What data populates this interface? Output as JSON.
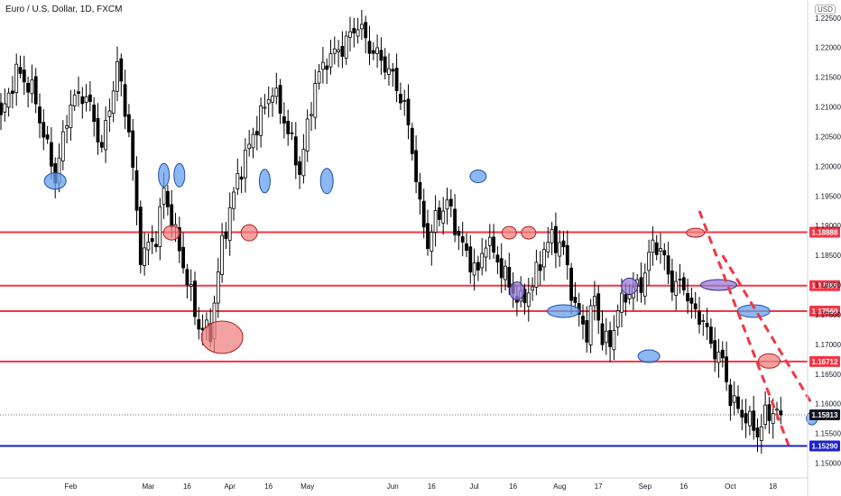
{
  "chart_data": {
    "type": "candlestick",
    "title": "Euro / U.S. Dollar, 1D, FXCM",
    "currency": "USD",
    "ylim": [
      1.1475,
      1.228
    ],
    "y_ticks": [
      "1.22500",
      "1.22000",
      "1.21500",
      "1.21000",
      "1.20500",
      "1.20000",
      "1.19500",
      "1.19000",
      "1.18500",
      "1.18000",
      "1.17500",
      "1.17000",
      "1.16500",
      "1.16000",
      "1.15500",
      "1.15000"
    ],
    "x_ticks": [
      {
        "label": "Feb",
        "i": 18
      },
      {
        "label": "Mar",
        "i": 38
      },
      {
        "label": "16",
        "i": 48
      },
      {
        "label": "Apr",
        "i": 59
      },
      {
        "label": "16",
        "i": 69
      },
      {
        "label": "May",
        "i": 79
      },
      {
        "label": "Jun",
        "i": 101
      },
      {
        "label": "16",
        "i": 111
      },
      {
        "label": "Jul",
        "i": 122
      },
      {
        "label": "16",
        "i": 132
      },
      {
        "label": "Aug",
        "i": 144
      },
      {
        "label": "17",
        "i": 154
      },
      {
        "label": "Sep",
        "i": 166
      },
      {
        "label": "16",
        "i": 176
      },
      {
        "label": "Oct",
        "i": 188
      },
      {
        "label": "18",
        "i": 199
      }
    ],
    "anchors": [
      {
        "i": 0,
        "v": 1.208
      },
      {
        "i": 4,
        "v": 1.216
      },
      {
        "i": 8,
        "v": 1.213
      },
      {
        "i": 14,
        "v": 1.198
      },
      {
        "i": 18,
        "v": 1.211
      },
      {
        "i": 22,
        "v": 1.212
      },
      {
        "i": 26,
        "v": 1.203
      },
      {
        "i": 30,
        "v": 1.217
      },
      {
        "i": 33,
        "v": 1.206
      },
      {
        "i": 36,
        "v": 1.185
      },
      {
        "i": 40,
        "v": 1.188
      },
      {
        "i": 42,
        "v": 1.196
      },
      {
        "i": 46,
        "v": 1.186
      },
      {
        "i": 51,
        "v": 1.173
      },
      {
        "i": 54,
        "v": 1.172
      },
      {
        "i": 57,
        "v": 1.187
      },
      {
        "i": 61,
        "v": 1.198
      },
      {
        "i": 66,
        "v": 1.207
      },
      {
        "i": 70,
        "v": 1.213
      },
      {
        "i": 74,
        "v": 1.206
      },
      {
        "i": 77,
        "v": 1.199
      },
      {
        "i": 81,
        "v": 1.214
      },
      {
        "i": 84,
        "v": 1.218
      },
      {
        "i": 88,
        "v": 1.22
      },
      {
        "i": 92,
        "v": 1.224
      },
      {
        "i": 95,
        "v": 1.22
      },
      {
        "i": 98,
        "v": 1.218
      },
      {
        "i": 101,
        "v": 1.215
      },
      {
        "i": 104,
        "v": 1.21
      },
      {
        "i": 106,
        "v": 1.203
      },
      {
        "i": 108,
        "v": 1.193
      },
      {
        "i": 110,
        "v": 1.187
      },
      {
        "i": 112,
        "v": 1.191
      },
      {
        "i": 115,
        "v": 1.194
      },
      {
        "i": 117,
        "v": 1.19
      },
      {
        "i": 120,
        "v": 1.185
      },
      {
        "i": 123,
        "v": 1.182
      },
      {
        "i": 125,
        "v": 1.188
      },
      {
        "i": 128,
        "v": 1.184
      },
      {
        "i": 131,
        "v": 1.18
      },
      {
        "i": 134,
        "v": 1.177
      },
      {
        "i": 137,
        "v": 1.18
      },
      {
        "i": 140,
        "v": 1.186
      },
      {
        "i": 142,
        "v": 1.188
      },
      {
        "i": 145,
        "v": 1.186
      },
      {
        "i": 148,
        "v": 1.176
      },
      {
        "i": 151,
        "v": 1.172
      },
      {
        "i": 153,
        "v": 1.178
      },
      {
        "i": 155,
        "v": 1.171
      },
      {
        "i": 157,
        "v": 1.17
      },
      {
        "i": 159,
        "v": 1.176
      },
      {
        "i": 162,
        "v": 1.179
      },
      {
        "i": 165,
        "v": 1.18
      },
      {
        "i": 168,
        "v": 1.187
      },
      {
        "i": 170,
        "v": 1.186
      },
      {
        "i": 173,
        "v": 1.18
      },
      {
        "i": 176,
        "v": 1.18
      },
      {
        "i": 178,
        "v": 1.176
      },
      {
        "i": 181,
        "v": 1.174
      },
      {
        "i": 183,
        "v": 1.17
      },
      {
        "i": 186,
        "v": 1.167
      },
      {
        "i": 188,
        "v": 1.161
      },
      {
        "i": 190,
        "v": 1.159
      },
      {
        "i": 193,
        "v": 1.157
      },
      {
        "i": 195,
        "v": 1.155
      },
      {
        "i": 197,
        "v": 1.158
      },
      {
        "i": 200,
        "v": 1.159
      },
      {
        "i": 201,
        "v": 1.1581
      }
    ],
    "current_price": 1.15813,
    "levels": [
      {
        "label": "1.18888",
        "price": 1.18888,
        "color": "#f23645"
      },
      {
        "label": "1.17989",
        "price": 1.17989,
        "color": "#f23645"
      },
      {
        "label": "1.17560",
        "price": 1.1756,
        "color": "#f23645"
      },
      {
        "label": "1.16712",
        "price": 1.16712,
        "color": "#f23645"
      },
      {
        "label": "1.15290",
        "price": 1.1529,
        "color": "#1e22c8"
      }
    ],
    "current_label": "1.15813",
    "ellipses": [
      {
        "i": 14,
        "v": 1.1975,
        "rx": 12,
        "ry": 9,
        "color": "blue"
      },
      {
        "i": 42,
        "v": 1.1985,
        "rx": 6,
        "ry": 13,
        "color": "blue"
      },
      {
        "i": 46,
        "v": 1.1985,
        "rx": 6,
        "ry": 13,
        "color": "blue"
      },
      {
        "i": 44,
        "v": 1.1888,
        "rx": 9,
        "ry": 8,
        "color": "red"
      },
      {
        "i": 57,
        "v": 1.1712,
        "rx": 23,
        "ry": 18,
        "color": "red"
      },
      {
        "i": 64,
        "v": 1.1888,
        "rx": 9,
        "ry": 9,
        "color": "red"
      },
      {
        "i": 68,
        "v": 1.1975,
        "rx": 6,
        "ry": 13,
        "color": "blue"
      },
      {
        "i": 84,
        "v": 1.1975,
        "rx": 7,
        "ry": 14,
        "color": "blue"
      },
      {
        "i": 123,
        "v": 1.1983,
        "rx": 9,
        "ry": 7,
        "color": "blue"
      },
      {
        "i": 131,
        "v": 1.1888,
        "rx": 8,
        "ry": 7,
        "color": "red"
      },
      {
        "i": 136,
        "v": 1.1888,
        "rx": 8,
        "ry": 7,
        "color": "red"
      },
      {
        "i": 133,
        "v": 1.179,
        "rx": 8,
        "ry": 10,
        "color": "purple"
      },
      {
        "i": 145,
        "v": 1.1756,
        "rx": 18,
        "ry": 7,
        "color": "blue"
      },
      {
        "i": 162,
        "v": 1.1798,
        "rx": 9,
        "ry": 9,
        "color": "purple"
      },
      {
        "i": 167,
        "v": 1.168,
        "rx": 12,
        "ry": 7,
        "color": "blue"
      },
      {
        "i": 179,
        "v": 1.1888,
        "rx": 10,
        "ry": 5,
        "color": "red"
      },
      {
        "i": 185,
        "v": 1.18,
        "rx": 20,
        "ry": 6,
        "color": "purple"
      },
      {
        "i": 194,
        "v": 1.1756,
        "rx": 18,
        "ry": 7,
        "color": "blue"
      },
      {
        "i": 198,
        "v": 1.1672,
        "rx": 12,
        "ry": 8,
        "color": "red"
      },
      {
        "i": 209,
        "v": 1.1575,
        "rx": 6,
        "ry": 7,
        "color": "blue"
      }
    ],
    "trend_channel": [
      {
        "from": {
          "i": 180,
          "v": 1.1925
        },
        "to": {
          "i": 203,
          "v": 1.153
        }
      },
      {
        "from": {
          "i": 186,
          "v": 1.185
        },
        "to": {
          "i": 209,
          "v": 1.16
        }
      }
    ]
  }
}
